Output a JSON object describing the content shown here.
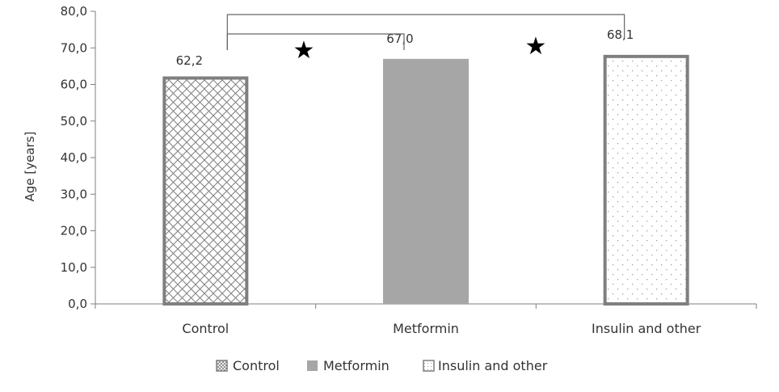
{
  "chart_data": {
    "type": "bar",
    "title": "",
    "xlabel": "",
    "ylabel": "Age [years]",
    "ylim": [
      0,
      80
    ],
    "ytick_step": 10,
    "yticks": [
      "0,0",
      "10,0",
      "20,0",
      "30,0",
      "40,0",
      "50,0",
      "60,0",
      "70,0",
      "80,0"
    ],
    "grid": false,
    "categories": [
      "Control",
      "Metformin",
      "Insulin and other"
    ],
    "values": [
      62.2,
      67.0,
      68.1
    ],
    "data_labels": [
      "62,2",
      "67,0",
      "68,1"
    ],
    "styles": [
      {
        "pattern": "crosshatch",
        "fill": "#ffffff",
        "stroke": "#7f7f7f",
        "hatch": "#7f7f7f"
      },
      {
        "pattern": "solid",
        "fill": "#a6a6a6",
        "stroke": "#a6a6a6"
      },
      {
        "pattern": "dots",
        "fill": "#ffffff",
        "stroke": "#7f7f7f",
        "hatch": "#a0a0a0"
      }
    ],
    "legend": {
      "placement": "bottom",
      "entries": [
        "Control",
        "Metformin",
        "Insulin and other"
      ]
    },
    "annotations": {
      "significance_brackets": [
        {
          "from": "Control",
          "to": "Metformin",
          "marker": "★"
        },
        {
          "from": "Control",
          "to": "Insulin and other",
          "marker": "★"
        }
      ]
    },
    "axis_color": "#7f7f7f",
    "bracket_color": "#666666",
    "text_color": "#333333"
  }
}
